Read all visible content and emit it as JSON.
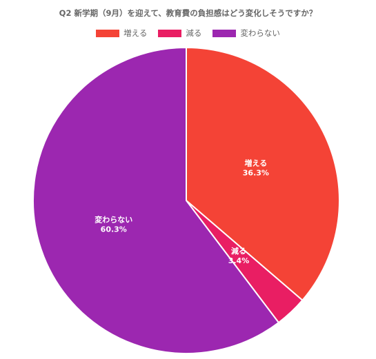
{
  "chart_data": {
    "type": "pie",
    "title": "Q2 新学期（9月）を迎えて、教育費の負担感はどう変化しそうですか？",
    "legend_position": "top",
    "slices": [
      {
        "label": "増える",
        "value": 36.3,
        "value_label": "36.3%",
        "color": "#f44336"
      },
      {
        "label": "減る",
        "value": 3.4,
        "value_label": "3.4%",
        "color": "#e91e63"
      },
      {
        "label": "変わらない",
        "value": 60.3,
        "value_label": "60.3%",
        "color": "#9c27b0"
      }
    ]
  }
}
